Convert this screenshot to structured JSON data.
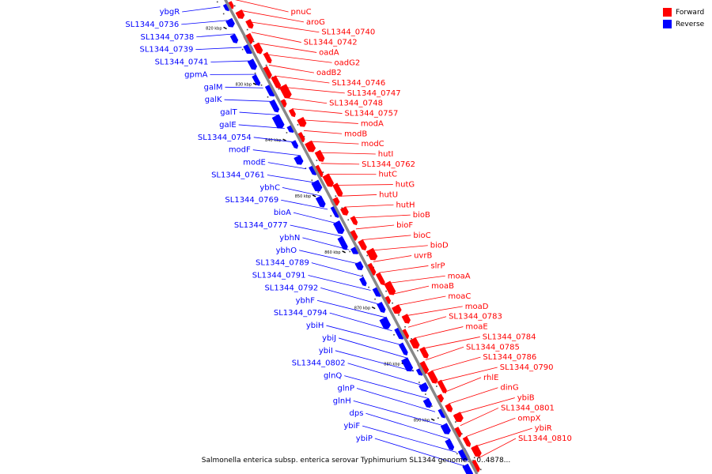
{
  "caption": "Salmonella enterica subsp. enterica serovar Typhimurium SL1344 genome. - 0..4878...",
  "legend": {
    "forward_label": "Forward",
    "reverse_label": "Reverse",
    "forward_color": "#ff0000",
    "reverse_color": "#0000ff"
  },
  "map": {
    "start_kbp": 814,
    "end_kbp": 899,
    "backbone_color": "#888888",
    "ticks": [
      {
        "label": "820 kbp",
        "kbp": 820
      },
      {
        "label": "830 kbp",
        "kbp": 830
      },
      {
        "label": "840 kbp",
        "kbp": 840
      },
      {
        "label": "850 kbp",
        "kbp": 850
      },
      {
        "label": "860 kbp",
        "kbp": 860
      },
      {
        "label": "870 kbp",
        "kbp": 870
      },
      {
        "label": "880 kbp",
        "kbp": 880
      },
      {
        "label": "890 kbp",
        "kbp": 890
      }
    ],
    "forward_genes": [
      "pnuC",
      "aroG",
      "SL1344_0740",
      "SL1344_0742",
      "oadA",
      "oadG2",
      "oadB2",
      "SL1344_0746",
      "SL1344_0747",
      "SL1344_0748",
      "SL1344_0757",
      "modA",
      "modB",
      "modC",
      "hutI",
      "SL1344_0762",
      "hutC",
      "hutG",
      "hutU",
      "hutH",
      "bioB",
      "bioF",
      "bioC",
      "bioD",
      "uvrB",
      "slrP",
      "moaA",
      "moaB",
      "moaC",
      "moaD",
      "SL1344_0783",
      "moaE",
      "SL1344_0784",
      "SL1344_0785",
      "SL1344_0786",
      "SL1344_0790",
      "rhlE",
      "dinG",
      "ybiB",
      "SL1344_0801",
      "ompX",
      "ybiR",
      "SL1344_0810"
    ],
    "reverse_genes": [
      "ybgR",
      "SL1344_0736",
      "SL1344_0738",
      "SL1344_0739",
      "SL1344_0741",
      "gpmA",
      "galM",
      "galK",
      "galT",
      "galE",
      "SL1344_0754",
      "modF",
      "modE",
      "SL1344_0761",
      "ybhC",
      "SL1344_0769",
      "bioA",
      "SL1344_0777",
      "ybhN",
      "ybhO",
      "SL1344_0789",
      "SL1344_0791",
      "SL1344_0792",
      "ybhF",
      "SL1344_0794",
      "ybiH",
      "ybiJ",
      "ybiI",
      "SL1344_0802",
      "glnQ",
      "glnP",
      "glnH",
      "dps",
      "ybiF",
      "ybiP"
    ]
  }
}
